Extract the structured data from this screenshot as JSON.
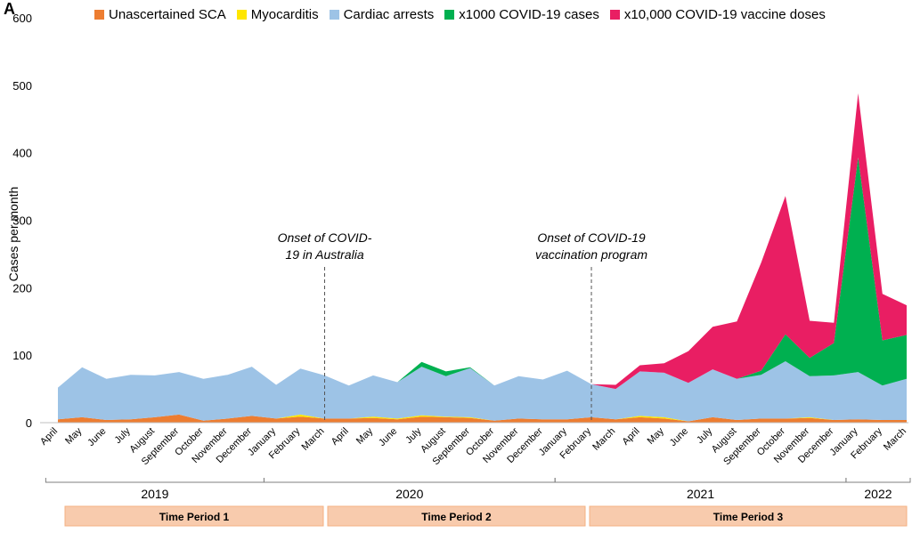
{
  "panel_label": "A",
  "colors": {
    "unascertained": "#ed7d31",
    "myocarditis": "#ffe600",
    "cardiac": "#9dc3e6",
    "covid": "#00b050",
    "vaccine": "#e91e63"
  },
  "chart_data": {
    "type": "area",
    "stacked": true,
    "ylabel": "Cases per month",
    "ylim": [
      0,
      600
    ],
    "yticks": [
      0,
      100,
      200,
      300,
      400,
      500,
      600
    ],
    "grid": false,
    "legend_position": "top",
    "x": [
      "April",
      "May",
      "June",
      "July",
      "August",
      "September",
      "October",
      "November",
      "December",
      "January",
      "February",
      "March",
      "April",
      "May",
      "June",
      "July",
      "August",
      "September",
      "October",
      "November",
      "December",
      "January",
      "February",
      "March",
      "April",
      "May",
      "June",
      "July",
      "August",
      "September",
      "October",
      "November",
      "December",
      "January",
      "February",
      "March"
    ],
    "series": [
      {
        "name": "Unascertained SCA",
        "color_key": "unascertained",
        "values": [
          5,
          8,
          4,
          5,
          8,
          12,
          3,
          6,
          10,
          6,
          9,
          6,
          6,
          7,
          5,
          9,
          8,
          7,
          3,
          6,
          5,
          5,
          8,
          5,
          8,
          6,
          2,
          8,
          4,
          6,
          6,
          7,
          4,
          5,
          4,
          4
        ]
      },
      {
        "name": "Myocarditis",
        "color_key": "myocarditis",
        "values": [
          0,
          0,
          0,
          0,
          0,
          0,
          0,
          0,
          0,
          0,
          3,
          0,
          0,
          2,
          1,
          2,
          1,
          1,
          0,
          0,
          0,
          0,
          0,
          0,
          2,
          2,
          0,
          0,
          0,
          0,
          0,
          1,
          0,
          0,
          0,
          0
        ]
      },
      {
        "name": "Cardiac arrests",
        "color_key": "cardiac",
        "values": [
          47,
          74,
          61,
          66,
          62,
          63,
          62,
          65,
          73,
          50,
          68,
          64,
          49,
          61,
          54,
          72,
          60,
          73,
          52,
          63,
          59,
          72,
          49,
          45,
          66,
          66,
          57,
          71,
          61,
          65,
          85,
          61,
          66,
          70,
          51,
          61
        ]
      },
      {
        "name": "x1000 COVID-19 cases",
        "color_key": "covid",
        "values": [
          0,
          0,
          0,
          0,
          0,
          0,
          0,
          0,
          0,
          0,
          0,
          0,
          0,
          0,
          0,
          7,
          7,
          1,
          0,
          0,
          0,
          0,
          0,
          0,
          0,
          0,
          0,
          0,
          0,
          6,
          40,
          27,
          48,
          318,
          67,
          65
        ]
      },
      {
        "name": "x10,000 COVID-19 vaccine doses",
        "color_key": "vaccine",
        "values": [
          0,
          0,
          0,
          0,
          0,
          0,
          0,
          0,
          0,
          0,
          0,
          0,
          0,
          0,
          0,
          0,
          0,
          0,
          0,
          0,
          0,
          0,
          0,
          6,
          9,
          14,
          47,
          63,
          85,
          160,
          205,
          55,
          30,
          95,
          69,
          44
        ]
      }
    ],
    "annotations": [
      {
        "line1": "Onset of COVID-",
        "line2": "19 in Australia",
        "at_index": 11
      },
      {
        "line1": "Onset of COVID-19",
        "line2": "vaccination program",
        "at_index": 22
      }
    ],
    "years": [
      {
        "label": "2019",
        "from": 0,
        "to": 8
      },
      {
        "label": "2020",
        "from": 9,
        "to": 20
      },
      {
        "label": "2021",
        "from": 21,
        "to": 32
      },
      {
        "label": "2022",
        "from": 33,
        "to": 35
      }
    ],
    "periods": [
      {
        "label": "Time Period 1",
        "from": 0,
        "to": 11
      },
      {
        "label": "Time Period 2",
        "from": 12,
        "to": 22
      },
      {
        "label": "Time Period 3",
        "from": 23,
        "to": 35
      }
    ]
  }
}
